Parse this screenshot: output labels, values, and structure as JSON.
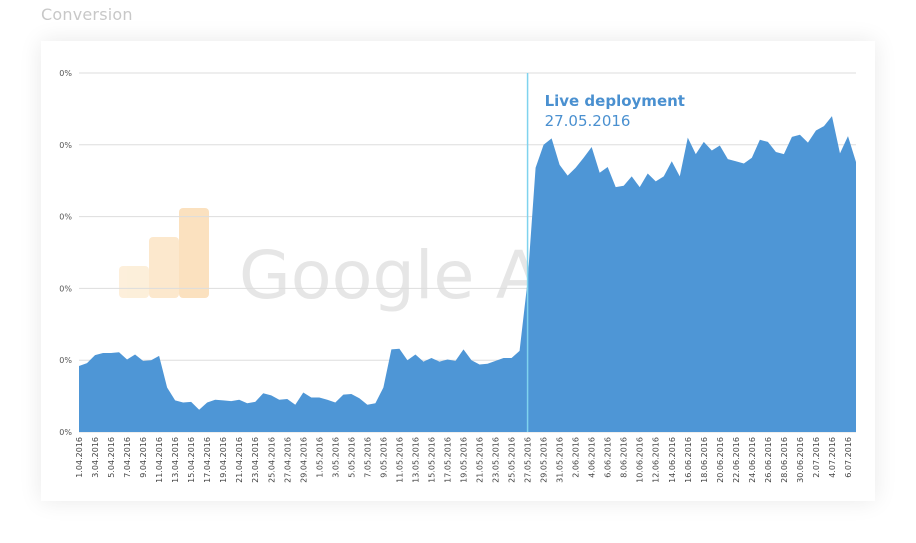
{
  "section_title": "Conversion",
  "colors": {
    "area_fill": "#4e96d6",
    "annotation_line": "#7fd3ee",
    "annotation_text": "#4a90d0",
    "grid": "#dddddd"
  },
  "watermark": {
    "text": "Google Analytics",
    "icon": "google-analytics-logo-icon"
  },
  "chart_data": {
    "type": "area",
    "title": "",
    "xlabel": "",
    "ylabel": "",
    "ylim": [
      0,
      5
    ],
    "y_tick_labels": [
      "0%",
      "0%",
      "0%",
      "0%",
      "0%",
      "0%"
    ],
    "grid": true,
    "x_tick_labels": [
      "1.04.2016",
      "3.04.2016",
      "5.04.2016",
      "7.04.2016",
      "9.04.2016",
      "11.04.2016",
      "13.04.2016",
      "15.04.2016",
      "17.04.2016",
      "19.04.2016",
      "21.04.2016",
      "23.04.2016",
      "25.04.2016",
      "27.04.2016",
      "29.04.2016",
      "1.05.2016",
      "3.05.2016",
      "5.05.2016",
      "7.05.2016",
      "9.05.2016",
      "11.05.2016",
      "13.05.2016",
      "15.05.2016",
      "17.05.2016",
      "19.05.2016",
      "21.05.2016",
      "23.05.2016",
      "25.05.2016",
      "27.05.2016",
      "29.05.2016",
      "31.05.2016",
      "2.06.2016",
      "4.06.2016",
      "6.06.2016",
      "8.06.2016",
      "10.06.2016",
      "12.06.2016",
      "14.06.2016",
      "16.06.2016",
      "18.06.2016",
      "20.06.2016",
      "22.06.2016",
      "24.06.2016",
      "26.06.2016",
      "28.06.2016",
      "30.06.2016",
      "2.07.2016",
      "4.07.2016",
      "6.07.2016"
    ],
    "series": [
      {
        "values": [
          0.92,
          0.96,
          1.07,
          1.1,
          1.1,
          1.11,
          1.01,
          1.08,
          0.99,
          1.0,
          1.06,
          0.62,
          0.44,
          0.41,
          0.42,
          0.31,
          0.41,
          0.45,
          0.44,
          0.43,
          0.45,
          0.4,
          0.42,
          0.54,
          0.51,
          0.45,
          0.46,
          0.38,
          0.55,
          0.48,
          0.48,
          0.45,
          0.41,
          0.52,
          0.53,
          0.47,
          0.38,
          0.4,
          0.62,
          1.15,
          1.16,
          1.0,
          1.08,
          0.98,
          1.03,
          0.98,
          1.01,
          0.99,
          1.15,
          1.0,
          0.94,
          0.95,
          0.99,
          1.03,
          1.03,
          1.13,
          2.1,
          3.68,
          4.0,
          4.09,
          3.72,
          3.57,
          3.68,
          3.82,
          3.97,
          3.61,
          3.69,
          3.41,
          3.43,
          3.56,
          3.41,
          3.6,
          3.49,
          3.56,
          3.77,
          3.56,
          4.1,
          3.87,
          4.04,
          3.92,
          3.99,
          3.8,
          3.77,
          3.74,
          3.82,
          4.07,
          4.04,
          3.9,
          3.87,
          4.11,
          4.14,
          4.03,
          4.2,
          4.26,
          4.4,
          3.88,
          4.12,
          3.76
        ]
      }
    ],
    "annotation": {
      "label": "Live deployment",
      "date": "27.05.2016",
      "x_label": "27.05.2016"
    }
  }
}
